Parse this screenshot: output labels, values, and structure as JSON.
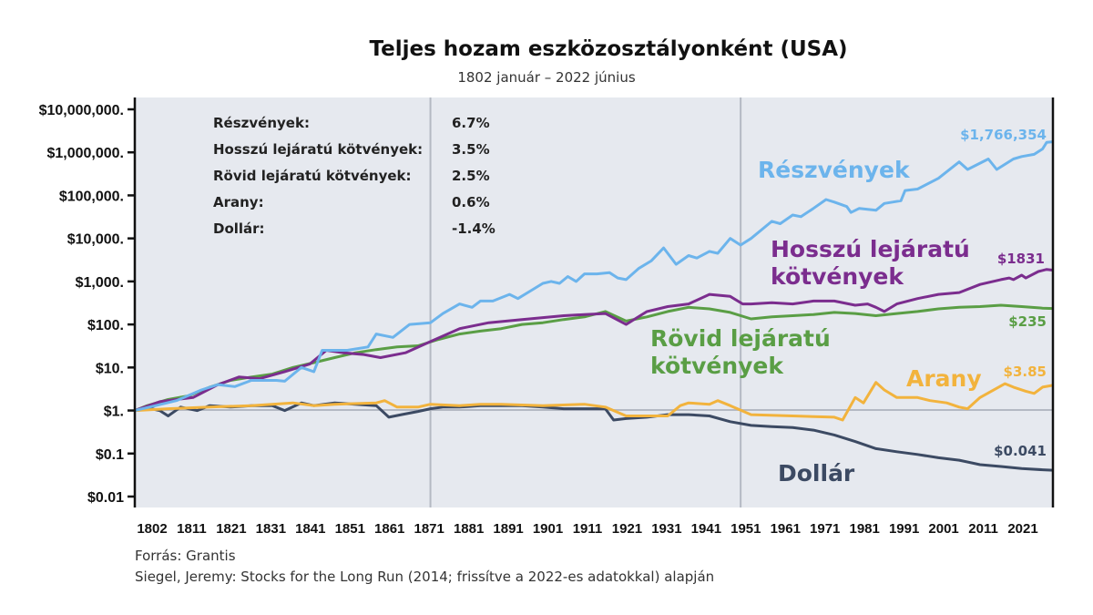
{
  "chart_data": {
    "type": "line",
    "title": "Teljes hozam eszközosztályonként (USA)",
    "subtitle": "1802 január – 2022 június",
    "y_scale": "log",
    "ylim": [
      0.01,
      10000000
    ],
    "xlim": [
      1802,
      2022.5
    ],
    "x_ticks": [
      "1802",
      "1811",
      "1821",
      "1831",
      "1841",
      "1851",
      "1861",
      "1871",
      "1881",
      "1891",
      "1901",
      "1911",
      "1921",
      "1931",
      "1941",
      "1951",
      "1961",
      "1971",
      "1981",
      "1991",
      "2001",
      "2011",
      "2021"
    ],
    "y_ticks": [
      {
        "value": 10000000,
        "label": "$10,000,000."
      },
      {
        "value": 1000000,
        "label": "$1,000,000."
      },
      {
        "value": 100000,
        "label": "$100,000."
      },
      {
        "value": 10000,
        "label": "$10,000."
      },
      {
        "value": 1000,
        "label": "$1,000."
      },
      {
        "value": 100,
        "label": "$100."
      },
      {
        "value": 10,
        "label": "$10."
      },
      {
        "value": 1,
        "label": "$1."
      },
      {
        "value": 0.1,
        "label": "$0.1"
      },
      {
        "value": 0.01,
        "label": "$0.01"
      }
    ],
    "vertical_lines": [
      1873,
      1947.5
    ],
    "grid": false,
    "series": [
      {
        "name": "Részvények",
        "color": "#6cb4ec",
        "end_label": "$1,766,354",
        "points": [
          [
            1802,
            1
          ],
          [
            1807,
            1.3
          ],
          [
            1812,
            1.7
          ],
          [
            1818,
            3
          ],
          [
            1822,
            4
          ],
          [
            1826,
            3.6
          ],
          [
            1830,
            5
          ],
          [
            1836,
            5
          ],
          [
            1838,
            4.8
          ],
          [
            1842,
            10
          ],
          [
            1845,
            8
          ],
          [
            1847,
            25
          ],
          [
            1850,
            25
          ],
          [
            1853,
            25
          ],
          [
            1858,
            30
          ],
          [
            1860,
            60
          ],
          [
            1864,
            50
          ],
          [
            1868,
            100
          ],
          [
            1873,
            110
          ],
          [
            1876,
            180
          ],
          [
            1880,
            300
          ],
          [
            1883,
            250
          ],
          [
            1885,
            350
          ],
          [
            1888,
            350
          ],
          [
            1892,
            500
          ],
          [
            1894,
            400
          ],
          [
            1897,
            600
          ],
          [
            1900,
            900
          ],
          [
            1902,
            1000
          ],
          [
            1904,
            900
          ],
          [
            1906,
            1300
          ],
          [
            1908,
            1000
          ],
          [
            1910,
            1500
          ],
          [
            1913,
            1500
          ],
          [
            1916,
            1600
          ],
          [
            1918,
            1200
          ],
          [
            1920,
            1100
          ],
          [
            1923,
            2000
          ],
          [
            1926,
            3000
          ],
          [
            1929,
            6000
          ],
          [
            1932,
            2500
          ],
          [
            1935,
            4000
          ],
          [
            1937,
            3500
          ],
          [
            1940,
            5000
          ],
          [
            1942,
            4500
          ],
          [
            1945,
            10000
          ],
          [
            1947.5,
            7000
          ],
          [
            1950,
            10000
          ],
          [
            1955,
            25000
          ],
          [
            1957,
            22000
          ],
          [
            1960,
            35000
          ],
          [
            1962,
            32000
          ],
          [
            1965,
            50000
          ],
          [
            1968,
            80000
          ],
          [
            1970,
            70000
          ],
          [
            1973,
            55000
          ],
          [
            1974,
            40000
          ],
          [
            1976,
            50000
          ],
          [
            1980,
            45000
          ],
          [
            1982,
            65000
          ],
          [
            1986,
            75000
          ],
          [
            1987,
            130000
          ],
          [
            1990,
            140000
          ],
          [
            1995,
            250000
          ],
          [
            2000,
            600000
          ],
          [
            2002,
            400000
          ],
          [
            2007,
            700000
          ],
          [
            2009,
            400000
          ],
          [
            2013,
            700000
          ],
          [
            2015,
            800000
          ],
          [
            2018,
            900000
          ],
          [
            2020,
            1200000
          ],
          [
            2021,
            1700000
          ],
          [
            2022.5,
            1766354
          ]
        ]
      },
      {
        "name": "Hosszú lejáratú kötvények",
        "color": "#7b2d8e",
        "end_label": "$1831",
        "points": [
          [
            1802,
            1
          ],
          [
            1808,
            1.6
          ],
          [
            1812,
            1.8
          ],
          [
            1816,
            2
          ],
          [
            1822,
            4
          ],
          [
            1827,
            6
          ],
          [
            1832,
            5.5
          ],
          [
            1838,
            8
          ],
          [
            1844,
            12
          ],
          [
            1848,
            25
          ],
          [
            1852,
            22
          ],
          [
            1857,
            20
          ],
          [
            1861,
            17
          ],
          [
            1867,
            22
          ],
          [
            1873,
            40
          ],
          [
            1880,
            80
          ],
          [
            1887,
            110
          ],
          [
            1895,
            130
          ],
          [
            1905,
            160
          ],
          [
            1910,
            170
          ],
          [
            1915,
            180
          ],
          [
            1920,
            100
          ],
          [
            1925,
            200
          ],
          [
            1930,
            260
          ],
          [
            1935,
            300
          ],
          [
            1940,
            500
          ],
          [
            1945,
            450
          ],
          [
            1948,
            300
          ],
          [
            1950,
            300
          ],
          [
            1955,
            320
          ],
          [
            1960,
            300
          ],
          [
            1965,
            350
          ],
          [
            1970,
            350
          ],
          [
            1975,
            280
          ],
          [
            1978,
            300
          ],
          [
            1980,
            250
          ],
          [
            1982,
            200
          ],
          [
            1985,
            300
          ],
          [
            1990,
            400
          ],
          [
            1995,
            500
          ],
          [
            2000,
            550
          ],
          [
            2005,
            850
          ],
          [
            2010,
            1100
          ],
          [
            2012,
            1200
          ],
          [
            2013,
            1100
          ],
          [
            2015,
            1400
          ],
          [
            2016,
            1200
          ],
          [
            2019,
            1700
          ],
          [
            2021,
            1900
          ],
          [
            2022.5,
            1831
          ]
        ]
      },
      {
        "name": "Rövid lejáratú kötvények",
        "color": "#5a9e45",
        "end_label": "$235",
        "points": [
          [
            1802,
            1
          ],
          [
            1805,
            1.3
          ],
          [
            1810,
            1.8
          ],
          [
            1815,
            2.2
          ],
          [
            1820,
            3.5
          ],
          [
            1825,
            5
          ],
          [
            1830,
            6
          ],
          [
            1835,
            7
          ],
          [
            1840,
            10
          ],
          [
            1845,
            13
          ],
          [
            1850,
            17
          ],
          [
            1855,
            22
          ],
          [
            1860,
            26
          ],
          [
            1865,
            30
          ],
          [
            1870,
            32
          ],
          [
            1875,
            45
          ],
          [
            1880,
            60
          ],
          [
            1885,
            70
          ],
          [
            1890,
            80
          ],
          [
            1895,
            100
          ],
          [
            1900,
            110
          ],
          [
            1905,
            130
          ],
          [
            1910,
            150
          ],
          [
            1915,
            200
          ],
          [
            1920,
            120
          ],
          [
            1925,
            150
          ],
          [
            1930,
            200
          ],
          [
            1935,
            250
          ],
          [
            1940,
            230
          ],
          [
            1945,
            190
          ],
          [
            1950,
            135
          ],
          [
            1955,
            150
          ],
          [
            1960,
            160
          ],
          [
            1965,
            170
          ],
          [
            1970,
            190
          ],
          [
            1975,
            180
          ],
          [
            1980,
            160
          ],
          [
            1985,
            180
          ],
          [
            1990,
            200
          ],
          [
            1995,
            230
          ],
          [
            2000,
            250
          ],
          [
            2005,
            260
          ],
          [
            2010,
            280
          ],
          [
            2015,
            260
          ],
          [
            2020,
            240
          ],
          [
            2022.5,
            235
          ]
        ]
      },
      {
        "name": "Arany",
        "color": "#f2b33d",
        "end_label": "$3.85",
        "points": [
          [
            1802,
            1
          ],
          [
            1810,
            1.1
          ],
          [
            1820,
            1.2
          ],
          [
            1830,
            1.3
          ],
          [
            1840,
            1.5
          ],
          [
            1845,
            1.3
          ],
          [
            1850,
            1.4
          ],
          [
            1860,
            1.5
          ],
          [
            1862,
            1.7
          ],
          [
            1865,
            1.2
          ],
          [
            1870,
            1.2
          ],
          [
            1873,
            1.4
          ],
          [
            1880,
            1.3
          ],
          [
            1885,
            1.4
          ],
          [
            1890,
            1.4
          ],
          [
            1900,
            1.3
          ],
          [
            1910,
            1.4
          ],
          [
            1915,
            1.2
          ],
          [
            1920,
            0.75
          ],
          [
            1925,
            0.75
          ],
          [
            1930,
            0.75
          ],
          [
            1933,
            1.3
          ],
          [
            1935,
            1.5
          ],
          [
            1940,
            1.4
          ],
          [
            1942,
            1.7
          ],
          [
            1945,
            1.3
          ],
          [
            1950,
            0.8
          ],
          [
            1960,
            0.75
          ],
          [
            1970,
            0.7
          ],
          [
            1972,
            0.6
          ],
          [
            1975,
            2
          ],
          [
            1977,
            1.5
          ],
          [
            1980,
            4.5
          ],
          [
            1982,
            3
          ],
          [
            1985,
            2
          ],
          [
            1990,
            2
          ],
          [
            1993,
            1.7
          ],
          [
            1997,
            1.5
          ],
          [
            2000,
            1.2
          ],
          [
            2002,
            1.1
          ],
          [
            2005,
            2
          ],
          [
            2011,
            4.2
          ],
          [
            2013,
            3.5
          ],
          [
            2016,
            2.8
          ],
          [
            2018,
            2.5
          ],
          [
            2020,
            3.5
          ],
          [
            2022.5,
            3.85
          ]
        ]
      },
      {
        "name": "Dollár",
        "color": "#3c4a63",
        "end_label": "$0.041",
        "points": [
          [
            1802,
            1
          ],
          [
            1806,
            1.1
          ],
          [
            1808,
            1
          ],
          [
            1810,
            0.75
          ],
          [
            1813,
            1.2
          ],
          [
            1817,
            1
          ],
          [
            1820,
            1.3
          ],
          [
            1825,
            1.2
          ],
          [
            1830,
            1.3
          ],
          [
            1835,
            1.3
          ],
          [
            1838,
            1
          ],
          [
            1842,
            1.5
          ],
          [
            1845,
            1.3
          ],
          [
            1850,
            1.5
          ],
          [
            1855,
            1.4
          ],
          [
            1860,
            1.3
          ],
          [
            1863,
            0.7
          ],
          [
            1866,
            0.8
          ],
          [
            1870,
            0.95
          ],
          [
            1873,
            1.1
          ],
          [
            1876,
            1.2
          ],
          [
            1880,
            1.2
          ],
          [
            1885,
            1.3
          ],
          [
            1890,
            1.3
          ],
          [
            1895,
            1.3
          ],
          [
            1900,
            1.2
          ],
          [
            1905,
            1.1
          ],
          [
            1910,
            1.1
          ],
          [
            1915,
            1.1
          ],
          [
            1917,
            0.6
          ],
          [
            1920,
            0.65
          ],
          [
            1925,
            0.7
          ],
          [
            1930,
            0.8
          ],
          [
            1935,
            0.8
          ],
          [
            1940,
            0.75
          ],
          [
            1945,
            0.55
          ],
          [
            1950,
            0.45
          ],
          [
            1955,
            0.42
          ],
          [
            1960,
            0.4
          ],
          [
            1965,
            0.35
          ],
          [
            1970,
            0.27
          ],
          [
            1975,
            0.19
          ],
          [
            1980,
            0.13
          ],
          [
            1985,
            0.11
          ],
          [
            1990,
            0.095
          ],
          [
            1995,
            0.08
          ],
          [
            2000,
            0.07
          ],
          [
            2005,
            0.055
          ],
          [
            2010,
            0.05
          ],
          [
            2015,
            0.045
          ],
          [
            2020,
            0.042
          ],
          [
            2022.5,
            0.041
          ]
        ]
      }
    ],
    "series_labels": [
      {
        "text": [
          "Részvények"
        ],
        "color": "#6cb4ec"
      },
      {
        "text": [
          "Hosszú lejáratú",
          "kötvények"
        ],
        "color": "#7b2d8e"
      },
      {
        "text": [
          "Rövid lejáratú",
          "kötvények"
        ],
        "color": "#5a9e45"
      },
      {
        "text": [
          "Arany"
        ],
        "color": "#f2b33d"
      },
      {
        "text": [
          "Dollár"
        ],
        "color": "#3c4a63"
      }
    ],
    "stats_table": [
      {
        "label": "Részvények:",
        "value": "6.7%"
      },
      {
        "label": "Hosszú lejáratú kötvények:",
        "value": "3.5%"
      },
      {
        "label": "Rövid lejáratú kötvények:",
        "value": "2.5%"
      },
      {
        "label": "Arany:",
        "value": "0.6%"
      },
      {
        "label": "Dollár:",
        "value": "-1.4%"
      }
    ]
  },
  "footer": {
    "source": "Forrás: Grantis",
    "note": "Siegel, Jeremy: Stocks for the Long Run (2014; frissítve a 2022-es adatokkal) alapján"
  }
}
